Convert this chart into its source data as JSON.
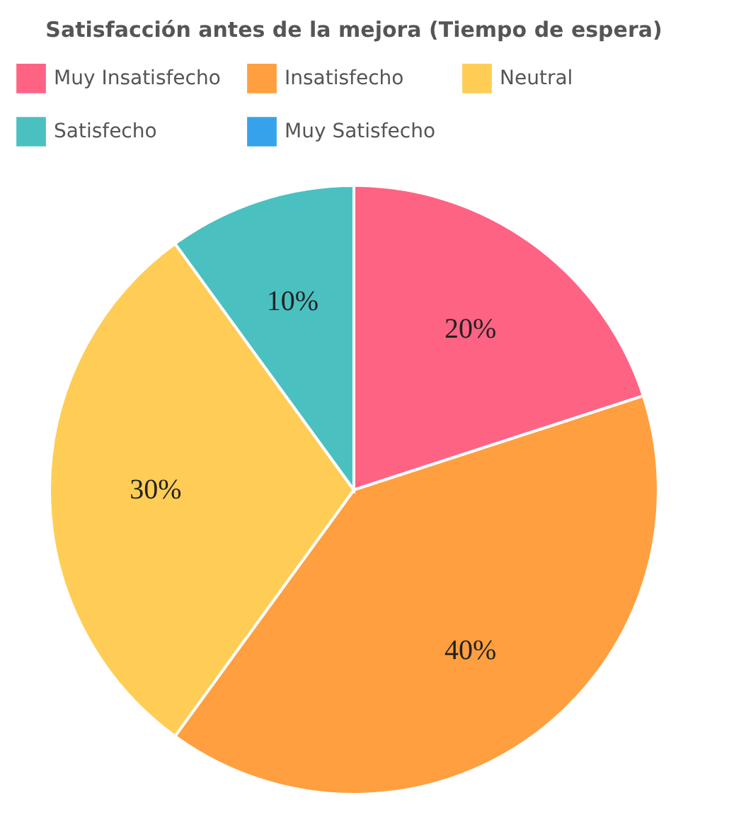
{
  "chart_data": {
    "type": "pie",
    "title": "Satisfacción antes de la mejora (Tiempo de espera)",
    "categories": [
      "Muy Insatisfecho",
      "Insatisfecho",
      "Neutral",
      "Satisfecho",
      "Muy Satisfecho"
    ],
    "values": [
      20,
      40,
      30,
      10,
      0
    ],
    "colors": [
      "#ff6384",
      "#ff9f40",
      "#ffcd56",
      "#4bc0c0",
      "#36a2eb"
    ],
    "value_labels": [
      "20%",
      "40%",
      "30%",
      "10%",
      null
    ],
    "legend": "top"
  }
}
